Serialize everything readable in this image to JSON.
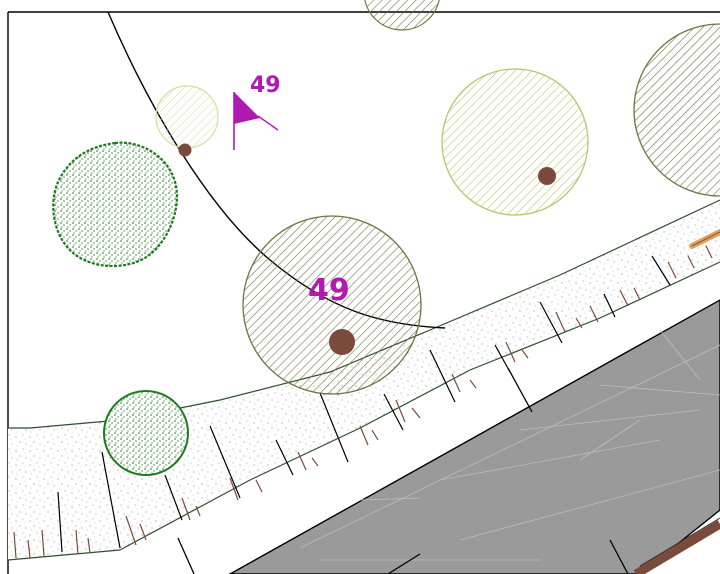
{
  "plan": {
    "labels": {
      "flag_number": "49",
      "tree_number": "49"
    }
  },
  "colors": {
    "label_magenta": "#b01ab0",
    "pavement_gray": "#9a9a9a",
    "shrub_green": "#1f7a1f",
    "tree_light_olive": "#b9c472",
    "tree_pale": "#d8dca0",
    "tree_dark_olive": "#6e7440",
    "trunk_brown": "#7a4b3a",
    "curb_line": "#000000",
    "bench_tan": "#e0a060",
    "bench_brown": "#7a4b3a"
  },
  "icons": {
    "flag": "survey-flag-icon"
  }
}
